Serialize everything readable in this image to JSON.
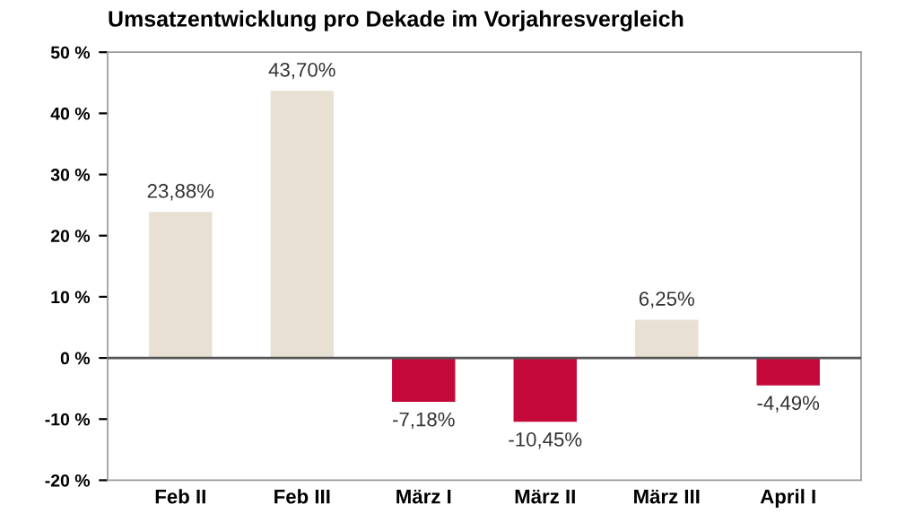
{
  "chart_data": {
    "type": "bar",
    "title": "Umsatzentwicklung pro Dekade im Vorjahresvergleich",
    "categories": [
      "Feb II",
      "Feb III",
      "März I",
      "März II",
      "März III",
      "April I"
    ],
    "values": [
      23.88,
      43.7,
      -7.18,
      -10.45,
      6.25,
      -4.49
    ],
    "colors": [
      "#e8e1d3",
      "#e8e1d3",
      "#c4093a",
      "#c4093a",
      "#e8e1d3",
      "#c4093a"
    ],
    "value_labels": [
      "23,88%",
      "43,70%",
      "-7,18%",
      "-10,45%",
      "6,25%",
      "-4,49%"
    ],
    "ylim": [
      -20,
      50
    ],
    "yticks": [
      {
        "value": 50,
        "label": "50 %"
      },
      {
        "value": 40,
        "label": "40 %"
      },
      {
        "value": 30,
        "label": "30 %"
      },
      {
        "value": 20,
        "label": "20 %"
      },
      {
        "value": 10,
        "label": "10 %"
      },
      {
        "value": 0,
        "label": "0 %"
      },
      {
        "value": -10,
        "label": "-10 %"
      },
      {
        "value": -20,
        "label": "-20 %"
      }
    ],
    "ref_lines": [
      {
        "axis": "y",
        "value": 0,
        "color": "#555555"
      }
    ],
    "grid": false
  }
}
